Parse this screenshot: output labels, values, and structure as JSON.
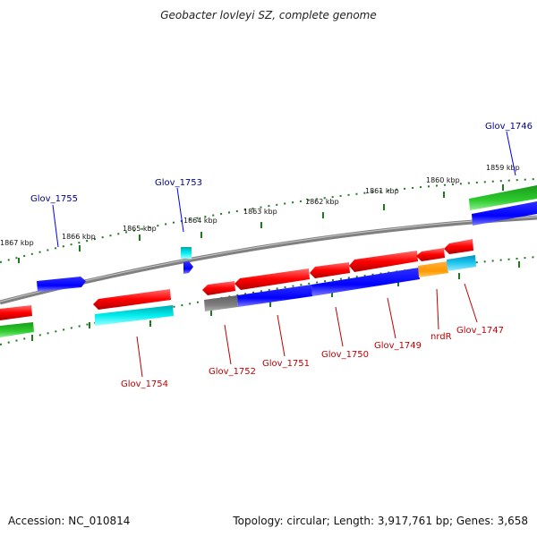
{
  "title": "Geobacter lovleyi SZ, complete genome",
  "footer": {
    "accession": "Accession: NC_010814",
    "summary": "Topology: circular; Length: 3,917,761 bp; Genes: 3,658"
  },
  "colors": {
    "backbone": "#808080",
    "tick": "#1f7a1f",
    "fwd_label": "#00008b",
    "rev_label": "#c00000",
    "red": "#ff0000",
    "blue": "#0000ff",
    "green": "#22b822",
    "cyan": "#00e5ee",
    "orange": "#ff9900",
    "gray": "#808080"
  },
  "kbp_ticks": [
    "1867 kbp",
    "1866 kbp",
    "1865 kbp",
    "1864 kbp",
    "1863 kbp",
    "1862 kbp",
    "1861 kbp",
    "1860 kbp",
    "1859 kbp"
  ],
  "forward_gene_labels": [
    "Glov_1755",
    "Glov_1753",
    "Glov_1746"
  ],
  "reverse_gene_labels": [
    "Glov_1754",
    "Glov_1752",
    "Glov_1751",
    "Glov_1750",
    "Glov_1749",
    "nrdR",
    "Glov_1747"
  ]
}
